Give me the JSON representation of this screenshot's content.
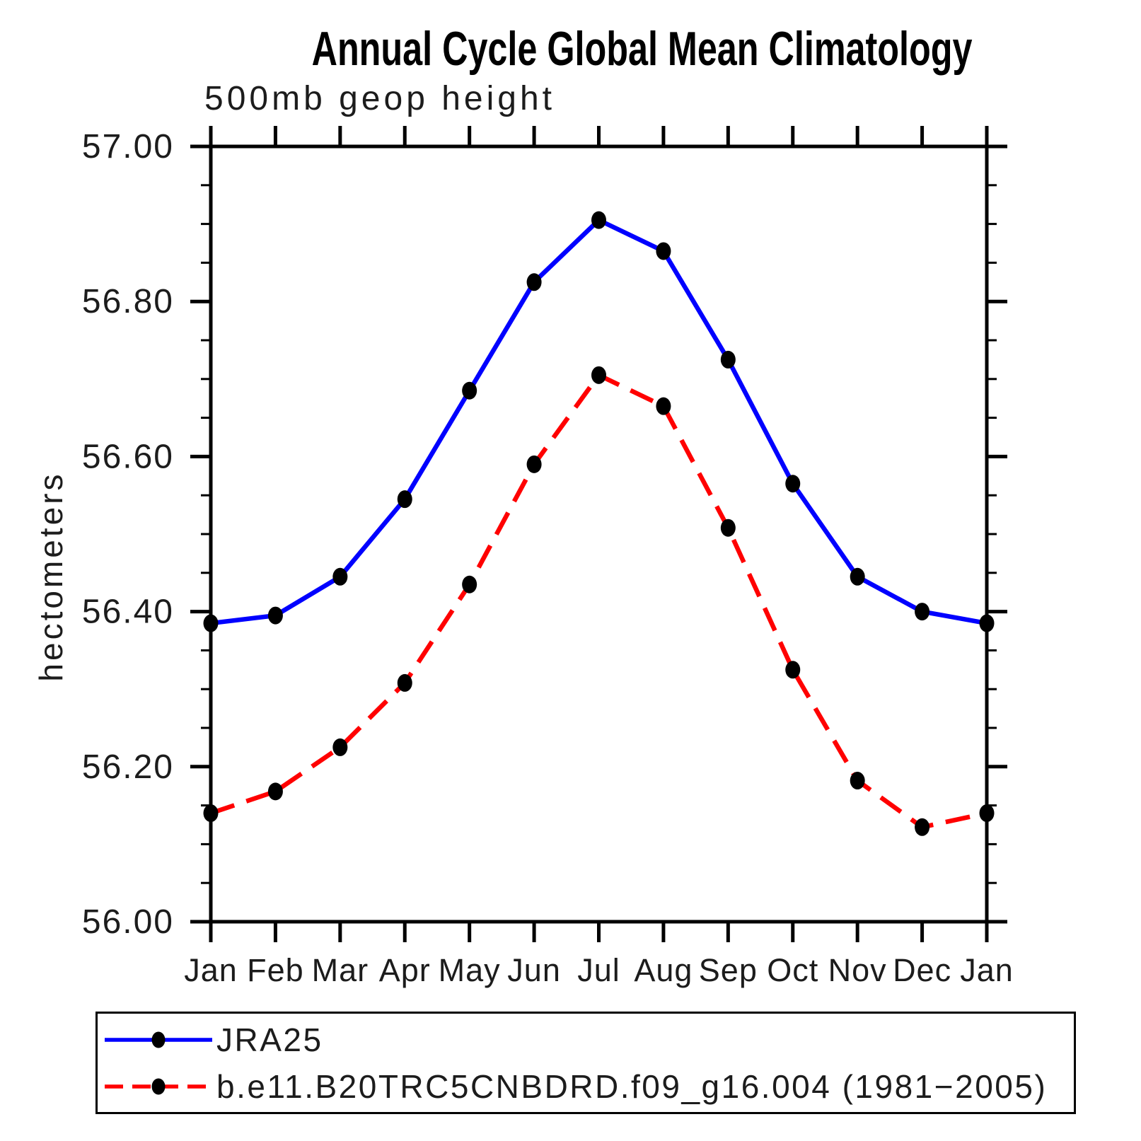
{
  "chart_data": {
    "type": "line",
    "title": "Annual Cycle Global Mean Climatology",
    "subtitle": "500mb geop height",
    "ylabel": "hectometers",
    "xlabel": "",
    "categories": [
      "Jan",
      "Feb",
      "Mar",
      "Apr",
      "May",
      "Jun",
      "Jul",
      "Aug",
      "Sep",
      "Oct",
      "Nov",
      "Dec",
      "Jan"
    ],
    "series": [
      {
        "name": "JRA25",
        "color": "#0000ff",
        "style": "solid",
        "marker": "filled-circle",
        "marker_color": "#000000",
        "values": [
          56.385,
          56.395,
          56.445,
          56.545,
          56.685,
          56.825,
          56.905,
          56.865,
          56.725,
          56.565,
          56.445,
          56.4,
          56.385
        ]
      },
      {
        "name": "b.e11.B20TRC5CNBDRD.f09_g16.004 (1981−2005)",
        "color": "#ff0000",
        "style": "dashed",
        "marker": "filled-circle",
        "marker_color": "#000000",
        "values": [
          56.14,
          56.168,
          56.225,
          56.308,
          56.435,
          56.59,
          56.705,
          56.665,
          56.508,
          56.325,
          56.182,
          56.122,
          56.14
        ]
      }
    ],
    "ylim": [
      56.0,
      57.0
    ],
    "ytick_step": 0.2,
    "yminor_step": 0.05,
    "ytick_labels": [
      "56.00",
      "56.20",
      "56.40",
      "56.60",
      "56.80",
      "57.00"
    ],
    "grid": false,
    "frame": "box",
    "legend_position": "bottom-left-box",
    "axis_color": "#000000"
  }
}
